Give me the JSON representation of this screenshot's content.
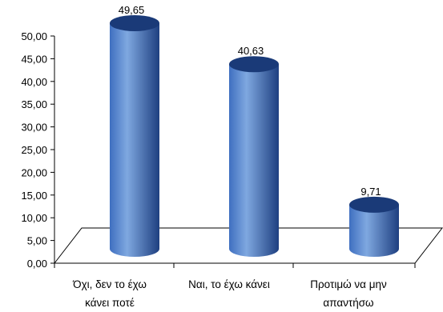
{
  "chart_data": {
    "type": "bar",
    "style": "3d-cylinder",
    "categories": [
      [
        "Όχι, δεν το έχω",
        "κάνει ποτέ"
      ],
      [
        "Ναι, το έχω κάνει"
      ],
      [
        "Προτιμώ να μην",
        "απαντήσω"
      ]
    ],
    "values": [
      49.65,
      40.63,
      9.71
    ],
    "data_labels": [
      "49,65",
      "40,63",
      "9,71"
    ],
    "ytick_labels": [
      "0,00",
      "5,00",
      "10,00",
      "15,00",
      "20,00",
      "25,00",
      "30,00",
      "35,00",
      "40,00",
      "45,00",
      "50,00"
    ],
    "ylim": [
      0,
      50
    ],
    "ystep": 5,
    "title": "",
    "xlabel": "",
    "ylabel": "",
    "grid": false,
    "legend": "none",
    "colors": {
      "bar_light": "#7fa8e0",
      "bar_mid": "#3f6fc0",
      "bar_dark": "#1e3f80",
      "bar_top": "#1a3a78",
      "axis": "#000000"
    }
  }
}
